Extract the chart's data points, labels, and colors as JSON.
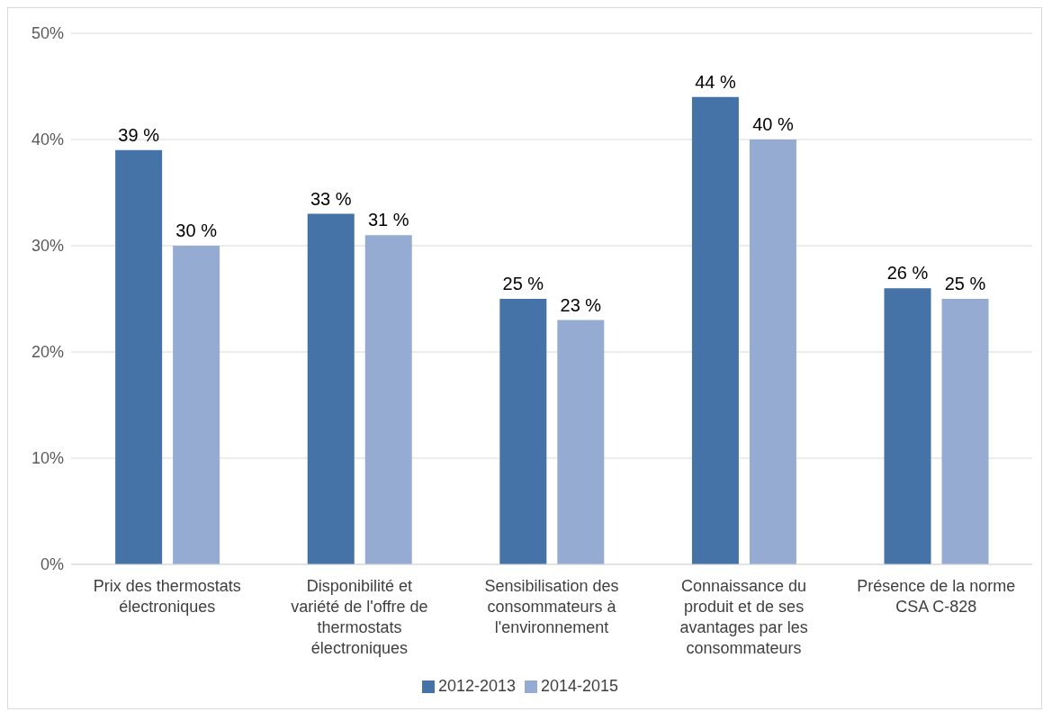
{
  "chart_data": {
    "type": "bar",
    "categories": [
      "Prix des thermostats électroniques",
      "Disponibilité et variété de l'offre de thermostats électroniques",
      "Sensibilisation des consommateurs à l'environnement",
      "Connaissance du produit et de ses avantages par les consommateurs",
      "Présence de la norme CSA C-828"
    ],
    "series": [
      {
        "name": "2012-2013",
        "color": "#4572a7",
        "values": [
          39,
          33,
          25,
          44,
          26
        ],
        "value_labels": [
          "39 %",
          "33 %",
          "25 %",
          "44 %",
          "26 %"
        ]
      },
      {
        "name": "2014-2015",
        "color": "#96abd1",
        "values": [
          30,
          31,
          23,
          40,
          25
        ],
        "value_labels": [
          "30 %",
          "31 %",
          "23 %",
          "40 %",
          "25 %"
        ]
      }
    ],
    "ylim": [
      0,
      50
    ],
    "yticks": [
      {
        "value": 0,
        "label": "0%"
      },
      {
        "value": 10,
        "label": "10%"
      },
      {
        "value": 20,
        "label": "20%"
      },
      {
        "value": 30,
        "label": "30%"
      },
      {
        "value": 40,
        "label": "40%"
      },
      {
        "value": 50,
        "label": "50%"
      }
    ],
    "grid": "y",
    "legend": "bottom"
  }
}
